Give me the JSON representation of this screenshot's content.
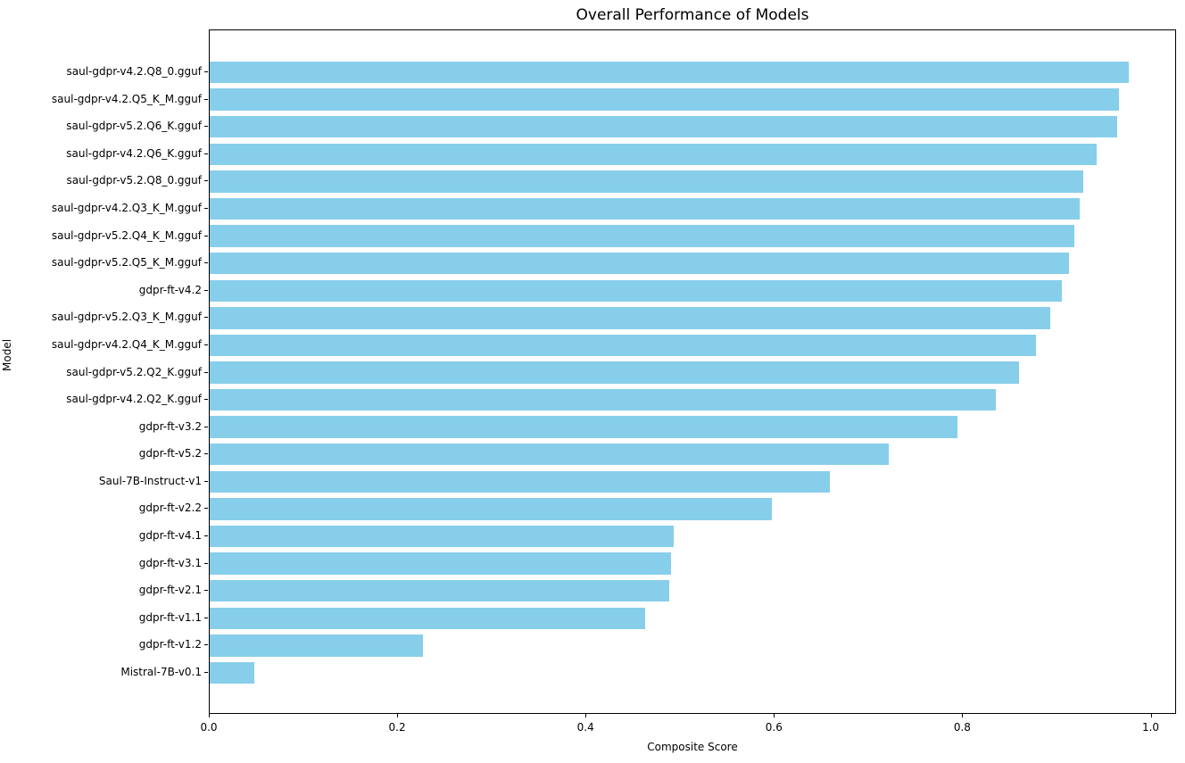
{
  "chart_data": {
    "type": "bar",
    "orientation": "horizontal",
    "title": "Overall Performance of Models",
    "xlabel": "Composite Score",
    "ylabel": "Model",
    "bar_color": "#87CEEB",
    "grid": false,
    "legend": null,
    "xlim": [
      0,
      1.027
    ],
    "xticks": [
      0.0,
      0.2,
      0.4,
      0.6,
      0.8,
      1.0
    ],
    "categories": [
      "saul-gdpr-v4.2.Q8_0.gguf",
      "saul-gdpr-v4.2.Q5_K_M.gguf",
      "saul-gdpr-v5.2.Q6_K.gguf",
      "saul-gdpr-v4.2.Q6_K.gguf",
      "saul-gdpr-v5.2.Q8_0.gguf",
      "saul-gdpr-v4.2.Q3_K_M.gguf",
      "saul-gdpr-v5.2.Q4_K_M.gguf",
      "saul-gdpr-v5.2.Q5_K_M.gguf",
      "gdpr-ft-v4.2",
      "saul-gdpr-v5.2.Q3_K_M.gguf",
      "saul-gdpr-v4.2.Q4_K_M.gguf",
      "saul-gdpr-v5.2.Q2_K.gguf",
      "saul-gdpr-v4.2.Q2_K.gguf",
      "gdpr-ft-v3.2",
      "gdpr-ft-v5.2",
      "Saul-7B-Instruct-v1",
      "gdpr-ft-v2.2",
      "gdpr-ft-v4.1",
      "gdpr-ft-v3.1",
      "gdpr-ft-v2.1",
      "gdpr-ft-v1.1",
      "gdpr-ft-v1.2",
      "Mistral-7B-v0.1"
    ],
    "values": [
      0.978,
      0.967,
      0.965,
      0.943,
      0.929,
      0.925,
      0.92,
      0.914,
      0.906,
      0.894,
      0.879,
      0.861,
      0.836,
      0.795,
      0.722,
      0.66,
      0.598,
      0.494,
      0.491,
      0.489,
      0.463,
      0.227,
      0.047
    ]
  }
}
